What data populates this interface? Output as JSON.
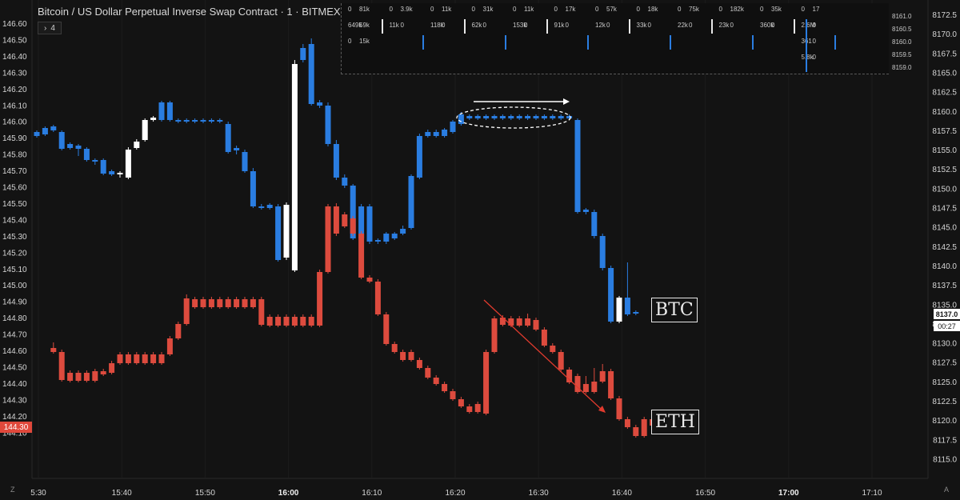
{
  "title": "Bitcoin / US Dollar Perpetual Inverse Swap Contract · 1 · BITMEX",
  "indicator_count": "4",
  "colors": {
    "btc_up": "#ffffff",
    "btc_down": "#2a7de1",
    "eth_up": "#5fa374",
    "eth_down": "#dd4b3e",
    "background": "#131313",
    "arrow_red": "#e23b2e"
  },
  "labels": {
    "btc": "BTC",
    "eth": "ETH"
  },
  "right_axis": {
    "ticks": [
      "8172.5",
      "8170.0",
      "8167.5",
      "8165.0",
      "8162.5",
      "8160.0",
      "8157.5",
      "8155.0",
      "8152.5",
      "8150.0",
      "8147.5",
      "8145.0",
      "8142.5",
      "8140.0",
      "8137.5",
      "8135.0",
      "8132.5",
      "8130.0",
      "8127.5",
      "8125.0",
      "8122.5",
      "8120.0",
      "8117.5",
      "8115.0"
    ],
    "current_price": "8137.0",
    "countdown": "00:27",
    "corner_label": "A"
  },
  "left_axis": {
    "ticks": [
      "146.60",
      "146.50",
      "146.40",
      "146.30",
      "146.20",
      "146.10",
      "146.00",
      "145.90",
      "145.80",
      "145.70",
      "145.60",
      "145.50",
      "145.40",
      "145.30",
      "145.20",
      "145.10",
      "145.00",
      "144.90",
      "144.80",
      "144.70",
      "144.60",
      "144.50",
      "144.40",
      "144.30",
      "144.20",
      "144.10"
    ],
    "current_price": "144.30",
    "corner_label": "Z"
  },
  "time_axis": {
    "ticks": [
      {
        "label": "5:30",
        "bold": false
      },
      {
        "label": "15:40",
        "bold": false
      },
      {
        "label": "15:50",
        "bold": false
      },
      {
        "label": "16:00",
        "bold": true
      },
      {
        "label": "16:10",
        "bold": false
      },
      {
        "label": "16:20",
        "bold": false
      },
      {
        "label": "16:30",
        "bold": false
      },
      {
        "label": "16:40",
        "bold": false
      },
      {
        "label": "16:50",
        "bold": false
      },
      {
        "label": "17:00",
        "bold": true
      },
      {
        "label": "17:10",
        "bold": false
      }
    ]
  },
  "volume_panel": {
    "columns": [
      {
        "r1": [
          "0",
          "81k"
        ],
        "r2": [
          "649k",
          "59k"
        ],
        "r3": [
          "0",
          "15k"
        ],
        "c1": "red"
      },
      {
        "r1": [
          "0",
          "3.9k"
        ],
        "r2": [
          "11k",
          "0"
        ],
        "c1": "red"
      },
      {
        "r1": [
          "0",
          "11k"
        ],
        "r2": [
          "118k",
          "0"
        ],
        "c1": "red"
      },
      {
        "r1": [
          "0",
          "31k"
        ],
        "r2": [
          "62k",
          "0"
        ],
        "c1": "grey"
      },
      {
        "r1": [
          "0",
          "11k"
        ],
        "r2": [
          "153k",
          "0"
        ],
        "c1": "red"
      },
      {
        "r1": [
          "0",
          "17k"
        ],
        "r2": [
          "91k",
          "0"
        ],
        "c1": "red"
      },
      {
        "r1": [
          "0",
          "57k"
        ],
        "r2": [
          "12k",
          "0"
        ],
        "c1": "grey",
        "c2r1": "green"
      },
      {
        "r1": [
          "0",
          "18k"
        ],
        "r2": [
          "33k",
          "0"
        ],
        "c1": "grey"
      },
      {
        "r1": [
          "0",
          "75k"
        ],
        "r2": [
          "22k",
          "0"
        ],
        "c1": "grey",
        "c2r1": "green"
      },
      {
        "r1": [
          "0",
          "182k"
        ],
        "r2": [
          "23k",
          "0"
        ],
        "c1": "grey",
        "c2r1": "green"
      },
      {
        "r1": [
          "0",
          "35k"
        ],
        "r2": [
          "360k",
          "0"
        ],
        "c1": "red"
      },
      {
        "r1": [
          "0",
          "17"
        ],
        "r2": [
          "2.6M",
          "0"
        ],
        "r3": [
          "361",
          "0"
        ],
        "r4": [
          "5.8k",
          "0"
        ],
        "c1": "red"
      }
    ],
    "price_ticks": [
      "8161.0",
      "8160.5",
      "8160.0",
      "8159.5",
      "8159.0"
    ]
  }
}
